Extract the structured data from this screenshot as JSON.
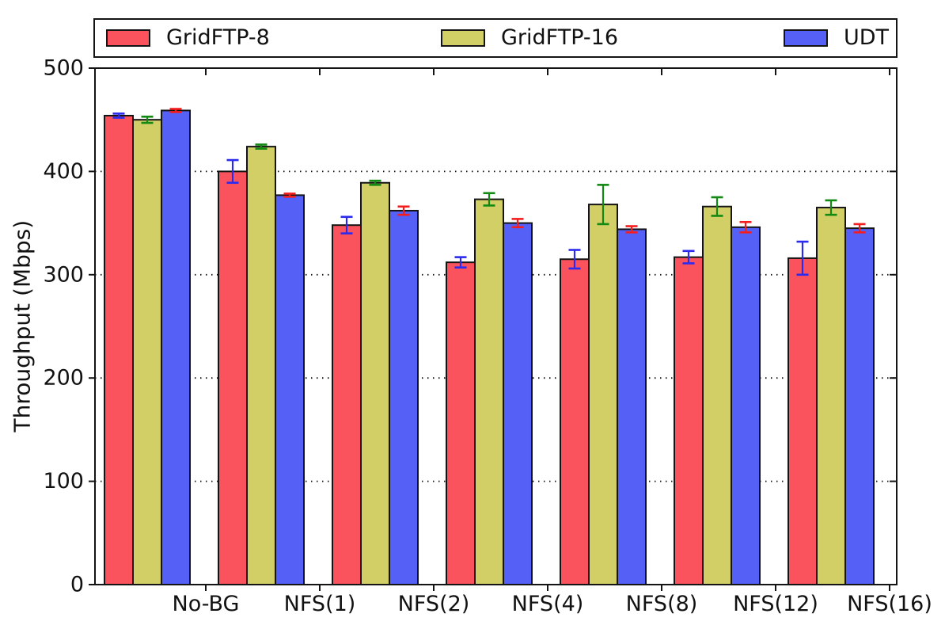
{
  "figure": {
    "background": "#ffffff",
    "text_color": "#111111",
    "spine_color": "#141414"
  },
  "chart_data": {
    "type": "bar",
    "title": "",
    "xlabel": "",
    "ylabel": "Throughput (Mbps)",
    "ylim": [
      0,
      500
    ],
    "yticks": [
      0,
      100,
      200,
      300,
      400,
      500
    ],
    "grid": "horizontal dotted lines at 100, 200, 300, 400",
    "legend_position": "horizontal strip above plot, spanning axes width",
    "legend_entries": [
      "GridFTP-8",
      "GridFTP-16",
      "UDT"
    ],
    "categories": [
      "No-BG",
      "NFS(1)",
      "NFS(2)",
      "NFS(4)",
      "NFS(8)",
      "NFS(12)",
      "NFS(16)"
    ],
    "series": [
      {
        "name": "GridFTP-8",
        "color": "#fb535e",
        "error_color": "#2a2af0",
        "values": [
          454,
          400,
          348,
          312,
          315,
          317,
          316
        ],
        "errors": [
          2,
          11,
          8,
          5,
          9,
          6,
          16
        ]
      },
      {
        "name": "GridFTP-16",
        "color": "#d1cf66",
        "error_color": "#128912",
        "values": [
          450,
          424,
          389,
          373,
          368,
          366,
          365
        ],
        "errors": [
          3,
          2,
          2,
          6,
          19,
          9,
          7
        ]
      },
      {
        "name": "UDT",
        "color": "#5560f7",
        "error_color": "#f51d1d",
        "values": [
          459,
          377,
          362,
          350,
          344,
          346,
          345
        ],
        "errors": [
          1.5,
          1.5,
          4,
          4,
          3,
          5,
          4
        ]
      }
    ]
  }
}
